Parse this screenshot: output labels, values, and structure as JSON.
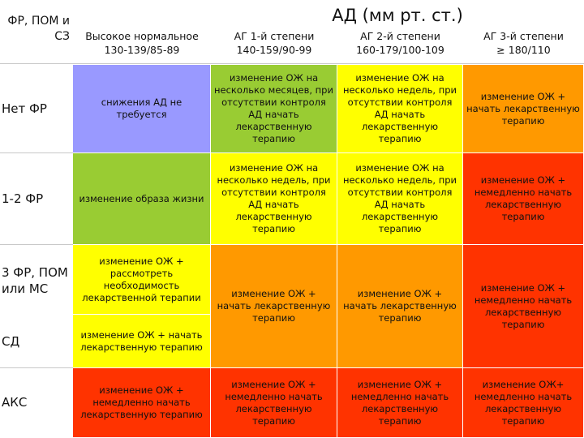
{
  "title": "АД (мм рт. ст.)",
  "corner_label": "ФР, ПОМ и СЗ",
  "columns": [
    {
      "line1": "Высокое нормальное",
      "line2": "130-139/85-89"
    },
    {
      "line1": "АГ 1-й степени",
      "line2": "140-159/90-99"
    },
    {
      "line1": "АГ 2-й степени",
      "line2": "160-179/100-109"
    },
    {
      "line1": "АГ 3-й степени",
      "line2": "≥ 180/110"
    }
  ],
  "rows": [
    {
      "label": "Нет ФР"
    },
    {
      "label": "1-2 ФР"
    },
    {
      "label": "3 ФР, ПОМ или МС"
    },
    {
      "label": "СД"
    },
    {
      "label": "АКС"
    }
  ],
  "cells": {
    "r1c1": "снижения АД не требуется",
    "r1c2": "изменение ОЖ на несколько месяцев, при отсутствии контроля АД начать лекарственную терапию",
    "r1c3": "изменение ОЖ на несколько недель, при отсутствии контроля АД начать лекарственную терапию",
    "r1c4": "изменение ОЖ + начать лекарственную терапию",
    "r2c1": "изменение образа жизни",
    "r2c2": "изменение ОЖ на несколько недель, при отсутствии контроля АД начать лекарственную терапию",
    "r2c3": "изменение ОЖ на несколько недель, при отсутствии контроля АД начать лекарственную терапию",
    "r2c4": "изменение ОЖ + немедленно начать лекарственную терапию",
    "r3c1": "изменение ОЖ + рассмотреть необходимость лекарственной терапии",
    "r4c1": "изменение ОЖ + начать лекарственную терапию",
    "r34c2": "изменение ОЖ + начать лекарственную терапию",
    "r34c3": "изменение ОЖ + начать лекарственную терапию",
    "r34c4": "изменение ОЖ + немедленно начать лекарственную терапию",
    "r5c1": "изменение ОЖ + немедленно начать лекарственную терапию",
    "r5c2": "изменение ОЖ + немедленно начать лекарственную терапию",
    "r5c3": "изменение ОЖ + немедленно начать лекарственную терапию",
    "r5c4": "изменение ОЖ+ немедленно начать лекарственную терапию"
  },
  "colors": {
    "blue": "#9999ff",
    "green": "#99cc33",
    "yellow": "#ffff00",
    "orange": "#ff9900",
    "red": "#ff3300"
  }
}
